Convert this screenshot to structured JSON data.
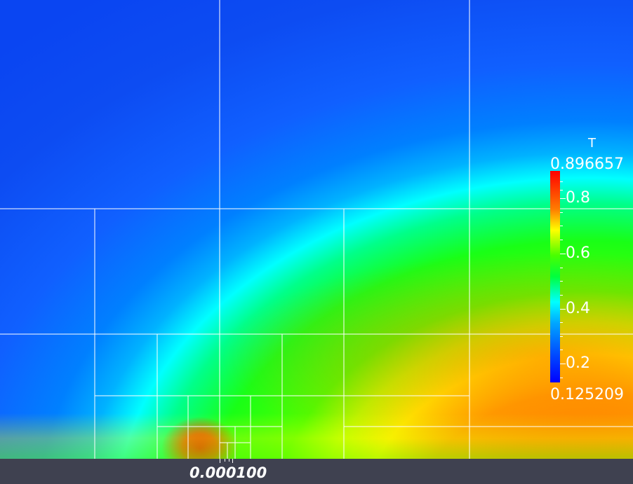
{
  "legend": {
    "title": "T",
    "max_label": "0.896657",
    "min_label": "0.125209",
    "ticks": [
      "0.8",
      "0.6",
      "0.4",
      "0.2"
    ]
  },
  "scale_ruler": {
    "label": "0.000100"
  },
  "colormap": {
    "high": "#ff0000",
    "upper": "#ffff00",
    "mid": "#00ff00",
    "lower": "#00ffff",
    "low": "#0000ff"
  }
}
